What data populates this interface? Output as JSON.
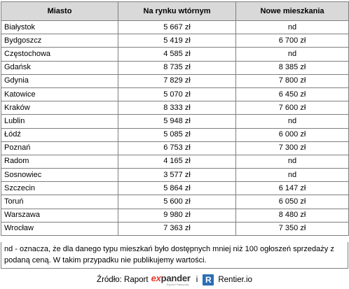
{
  "table": {
    "headers": [
      "Miasto",
      "Na rynku wtórnym",
      "Nowe mieszkania"
    ],
    "rows": [
      [
        "Białystok",
        "5 667 zł",
        "nd"
      ],
      [
        "Bydgoszcz",
        "5 419 zł",
        "6 700 zł"
      ],
      [
        "Częstochowa",
        "4 585 zł",
        "nd"
      ],
      [
        "Gdańsk",
        "8 735 zł",
        "8 385 zł"
      ],
      [
        "Gdynia",
        "7 829 zł",
        "7 800 zł"
      ],
      [
        "Katowice",
        "5 070 zł",
        "6 450 zł"
      ],
      [
        "Kraków",
        "8 333 zł",
        "7 600 zł"
      ],
      [
        "Lublin",
        "5 948 zł",
        "nd"
      ],
      [
        "Łódź",
        "5 085 zł",
        "6 000 zł"
      ],
      [
        "Poznań",
        "6 753 zł",
        "7 300 zł"
      ],
      [
        "Radom",
        "4 165 zł",
        "nd"
      ],
      [
        "Sosnowiec",
        "3 577 zł",
        "nd"
      ],
      [
        "Szczecin",
        "5 864 zł",
        "6 147 zł"
      ],
      [
        "Toruń",
        "5 600 zł",
        "6 050 zł"
      ],
      [
        "Warszawa",
        "9 980 zł",
        "8 480 zł"
      ],
      [
        "Wrocław",
        "7 363 zł",
        "7 350 zł"
      ]
    ]
  },
  "note": "nd - oznacza, że dla danego typu mieszkań było dostępnych mniej niż 100 ogłoszeń sprzedaży z podaną ceną. W takim przypadku nie publikujemy wartości.",
  "source": {
    "label": "Źródło: Raport",
    "expander_logo_prefix": "ex",
    "expander_logo_rest": "pander",
    "expander_sub": "Expert Finansowy",
    "conjunction": "i",
    "rentier_icon": "R",
    "rentier_name": "Rentier.io",
    "colors": {
      "expander_red": "#e5392a",
      "rentier_blue": "#2e6db4"
    }
  }
}
